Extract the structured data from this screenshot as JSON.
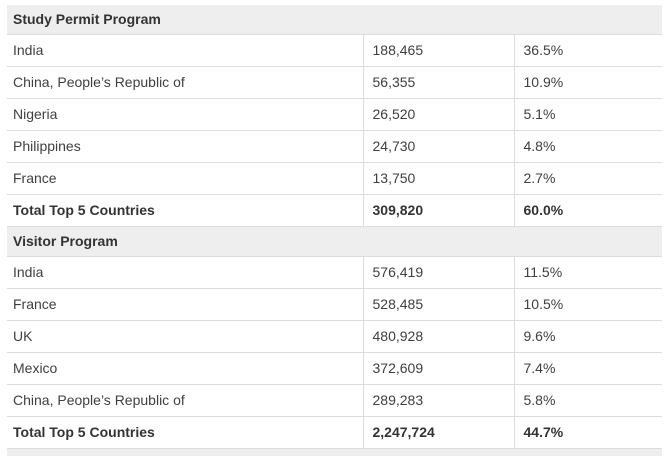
{
  "sections": [
    {
      "header": "Study Permit Program",
      "rows": [
        {
          "label": "India",
          "count": "188,465",
          "share": "36.5%"
        },
        {
          "label": "China, People’s Republic of",
          "count": "56,355",
          "share": "10.9%"
        },
        {
          "label": "Nigeria",
          "count": "26,520",
          "share": "5.1%"
        },
        {
          "label": "Philippines",
          "count": "24,730",
          "share": "4.8%"
        },
        {
          "label": "France",
          "count": "13,750",
          "share": "2.7%"
        }
      ],
      "total": {
        "label": "Total Top 5 Countries",
        "count": "309,820",
        "share": "60.0%"
      }
    },
    {
      "header": "Visitor Program",
      "rows": [
        {
          "label": "India",
          "count": "576,419",
          "share": "11.5%"
        },
        {
          "label": "France",
          "count": "528,485",
          "share": "10.5%"
        },
        {
          "label": "UK",
          "count": "480,928",
          "share": "9.6%"
        },
        {
          "label": "Mexico",
          "count": "372,609",
          "share": "7.4%"
        },
        {
          "label": "China, People’s Republic of",
          "count": "289,283",
          "share": "5.8%"
        }
      ],
      "total": {
        "label": "Total Top 5 Countries",
        "count": "2,247,724",
        "share": "44.7%"
      }
    }
  ],
  "colors": {
    "section_header_bg": "#eeeeee",
    "row_border": "#dddddd",
    "text": "#3f3f3f",
    "bold_text": "#333333",
    "page_bg": "#ffffff"
  }
}
